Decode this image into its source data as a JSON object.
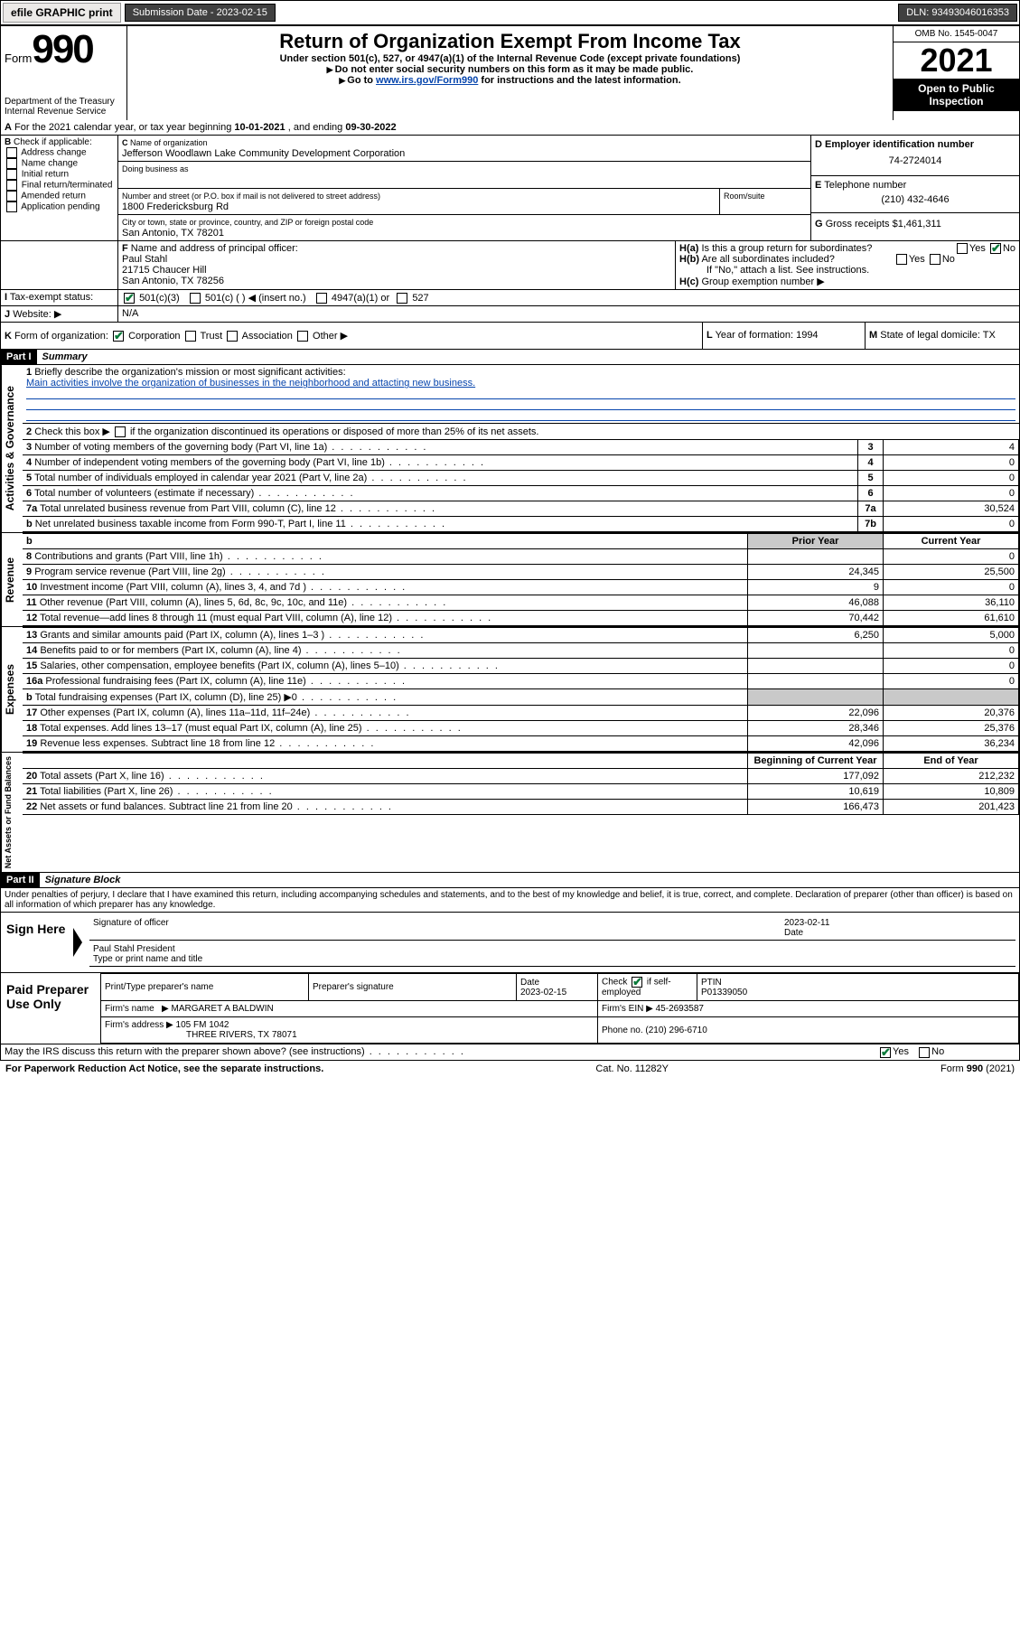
{
  "topbar": {
    "efile": "efile GRAPHIC print",
    "sub_lbl": "Submission Date - ",
    "sub_date": "2023-02-15",
    "dln_lbl": "DLN: ",
    "dln": "93493046016353"
  },
  "hdr": {
    "form_word": "Form",
    "form_num": "990",
    "title": "Return of Organization Exempt From Income Tax",
    "sub1": "Under section 501(c), 527, or 4947(a)(1) of the Internal Revenue Code (except private foundations)",
    "sub2": "Do not enter social security numbers on this form as it may be made public.",
    "sub3_pre": "Go to ",
    "sub3_link": "www.irs.gov/Form990",
    "sub3_post": " for instructions and the latest information.",
    "dept": "Department of the Treasury",
    "dept2": "Internal Revenue Service",
    "omb": "OMB No. 1545-0047",
    "year": "2021",
    "inspect": "Open to Public Inspection"
  },
  "A": {
    "line": "For the 2021 calendar year, or tax year beginning ",
    "begin": "10-01-2021",
    "mid": " , and ending ",
    "end": "09-30-2022"
  },
  "B": {
    "hdr": "Check if applicable:",
    "opts": [
      "Address change",
      "Name change",
      "Initial return",
      "Final return/terminated",
      "Amended return",
      "Application pending"
    ]
  },
  "C": {
    "name_lbl": "Name of organization",
    "name": "Jefferson Woodlawn Lake Community Development Corporation",
    "dba_lbl": "Doing business as",
    "dba": "",
    "addr_lbl": "Number and street (or P.O. box if mail is not delivered to street address)",
    "room_lbl": "Room/suite",
    "addr": "1800 Fredericksburg Rd",
    "city_lbl": "City or town, state or province, country, and ZIP or foreign postal code",
    "city": "San Antonio, TX  78201"
  },
  "D": {
    "lbl": "Employer identification number",
    "val": "74-2724014"
  },
  "E": {
    "lbl": "Telephone number",
    "val": "(210) 432-4646"
  },
  "G": {
    "lbl": "Gross receipts $",
    "val": "1,461,311"
  },
  "F": {
    "lbl": "Name and address of principal officer:",
    "name": "Paul Stahl",
    "addr1": "21715 Chaucer Hill",
    "addr2": "San Antonio, TX  78256"
  },
  "H": {
    "a": "Is this a group return for subordinates?",
    "b": "Are all subordinates included?",
    "note": "If \"No,\" attach a list. See instructions.",
    "c": "Group exemption number ▶",
    "yes": "Yes",
    "no": "No"
  },
  "I": {
    "lbl": "Tax-exempt status:",
    "o1": "501(c)(3)",
    "o2": "501(c) (   ) ◀ (insert no.)",
    "o3": "4947(a)(1) or",
    "o4": "527"
  },
  "J": {
    "lbl": "Website: ▶",
    "val": "N/A"
  },
  "K": {
    "lbl": "Form of organization:",
    "o1": "Corporation",
    "o2": "Trust",
    "o3": "Association",
    "o4": "Other ▶"
  },
  "L": {
    "lbl": "Year of formation:",
    "val": "1994"
  },
  "M": {
    "lbl": "State of legal domicile:",
    "val": "TX"
  },
  "p1": {
    "hdr": "Part I",
    "title": "Summary"
  },
  "s1": {
    "lbl": "Briefly describe the organization's mission or most significant activities:",
    "txt": "Main activities involve the organization of businesses in the neighborhood and attacting new business."
  },
  "s2": {
    "txt": "Check this box ▶ ",
    "tail": " if the organization discontinued its operations or disposed of more than 25% of its net assets."
  },
  "gov_rows": [
    {
      "n": "3",
      "t": "Number of voting members of the governing body (Part VI, line 1a)",
      "l": "3",
      "v": "4"
    },
    {
      "n": "4",
      "t": "Number of independent voting members of the governing body (Part VI, line 1b)",
      "l": "4",
      "v": "0"
    },
    {
      "n": "5",
      "t": "Total number of individuals employed in calendar year 2021 (Part V, line 2a)",
      "l": "5",
      "v": "0"
    },
    {
      "n": "6",
      "t": "Total number of volunteers (estimate if necessary)",
      "l": "6",
      "v": "0"
    },
    {
      "n": "7a",
      "t": "Total unrelated business revenue from Part VIII, column (C), line 12",
      "l": "7a",
      "v": "30,524"
    },
    {
      "n": "b",
      "t": "Net unrelated business taxable income from Form 990-T, Part I, line 11",
      "l": "7b",
      "v": "0"
    }
  ],
  "py_hdr": "Prior Year",
  "cy_hdr": "Current Year",
  "rev": [
    {
      "n": "8",
      "t": "Contributions and grants (Part VIII, line 1h)",
      "p": "",
      "c": "0"
    },
    {
      "n": "9",
      "t": "Program service revenue (Part VIII, line 2g)",
      "p": "24,345",
      "c": "25,500"
    },
    {
      "n": "10",
      "t": "Investment income (Part VIII, column (A), lines 3, 4, and 7d )",
      "p": "9",
      "c": "0"
    },
    {
      "n": "11",
      "t": "Other revenue (Part VIII, column (A), lines 5, 6d, 8c, 9c, 10c, and 11e)",
      "p": "46,088",
      "c": "36,110"
    },
    {
      "n": "12",
      "t": "Total revenue—add lines 8 through 11 (must equal Part VIII, column (A), line 12)",
      "p": "70,442",
      "c": "61,610"
    }
  ],
  "exp": [
    {
      "n": "13",
      "t": "Grants and similar amounts paid (Part IX, column (A), lines 1–3 )",
      "p": "6,250",
      "c": "5,000"
    },
    {
      "n": "14",
      "t": "Benefits paid to or for members (Part IX, column (A), line 4)",
      "p": "",
      "c": "0"
    },
    {
      "n": "15",
      "t": "Salaries, other compensation, employee benefits (Part IX, column (A), lines 5–10)",
      "p": "",
      "c": "0"
    },
    {
      "n": "16a",
      "t": "Professional fundraising fees (Part IX, column (A), line 11e)",
      "p": "",
      "c": "0"
    },
    {
      "n": "b",
      "t": "Total fundraising expenses (Part IX, column (D), line 25) ▶0",
      "p": "grey",
      "c": "grey"
    },
    {
      "n": "17",
      "t": "Other expenses (Part IX, column (A), lines 11a–11d, 11f–24e)",
      "p": "22,096",
      "c": "20,376"
    },
    {
      "n": "18",
      "t": "Total expenses. Add lines 13–17 (must equal Part IX, column (A), line 25)",
      "p": "28,346",
      "c": "25,376"
    },
    {
      "n": "19",
      "t": "Revenue less expenses. Subtract line 18 from line 12",
      "p": "42,096",
      "c": "36,234"
    }
  ],
  "na_hdr1": "Beginning of Current Year",
  "na_hdr2": "End of Year",
  "na": [
    {
      "n": "20",
      "t": "Total assets (Part X, line 16)",
      "p": "177,092",
      "c": "212,232"
    },
    {
      "n": "21",
      "t": "Total liabilities (Part X, line 26)",
      "p": "10,619",
      "c": "10,809"
    },
    {
      "n": "22",
      "t": "Net assets or fund balances. Subtract line 21 from line 20",
      "p": "166,473",
      "c": "201,423"
    }
  ],
  "vert": {
    "gov": "Activities & Governance",
    "rev": "Revenue",
    "exp": "Expenses",
    "na": "Net Assets or Fund Balances"
  },
  "p2": {
    "hdr": "Part II",
    "title": "Signature Block",
    "decl": "Under penalties of perjury, I declare that I have examined this return, including accompanying schedules and statements, and to the best of my knowledge and belief, it is true, correct, and complete. Declaration of preparer (other than officer) is based on all information of which preparer has any knowledge."
  },
  "sign": {
    "here": "Sign Here",
    "sig_lbl": "Signature of officer",
    "date_lbl": "Date",
    "date": "2023-02-11",
    "name": "Paul Stahl  President",
    "name_lbl": "Type or print name and title"
  },
  "prep": {
    "hdr": "Paid Preparer Use Only",
    "c1": "Print/Type preparer's name",
    "c2": "Preparer's signature",
    "c3": "Date",
    "c3v": "2023-02-15",
    "c4": "Check",
    "c4b": "if self-employed",
    "c5": "PTIN",
    "c5v": "P01339050",
    "firm_lbl": "Firm's name",
    "firm": "MARGARET A BALDWIN",
    "ein_lbl": "Firm's EIN ▶",
    "ein": "45-2693587",
    "addr_lbl": "Firm's address ▶",
    "addr1": "105 FM 1042",
    "addr2": "THREE RIVERS, TX  78071",
    "ph_lbl": "Phone no.",
    "ph": "(210) 296-6710"
  },
  "discuss": {
    "q": "May the IRS discuss this return with the preparer shown above? (see instructions)",
    "yes": "Yes",
    "no": "No"
  },
  "foot": {
    "l": "For Paperwork Reduction Act Notice, see the separate instructions.",
    "m": "Cat. No. 11282Y",
    "r": "Form 990 (2021)"
  }
}
